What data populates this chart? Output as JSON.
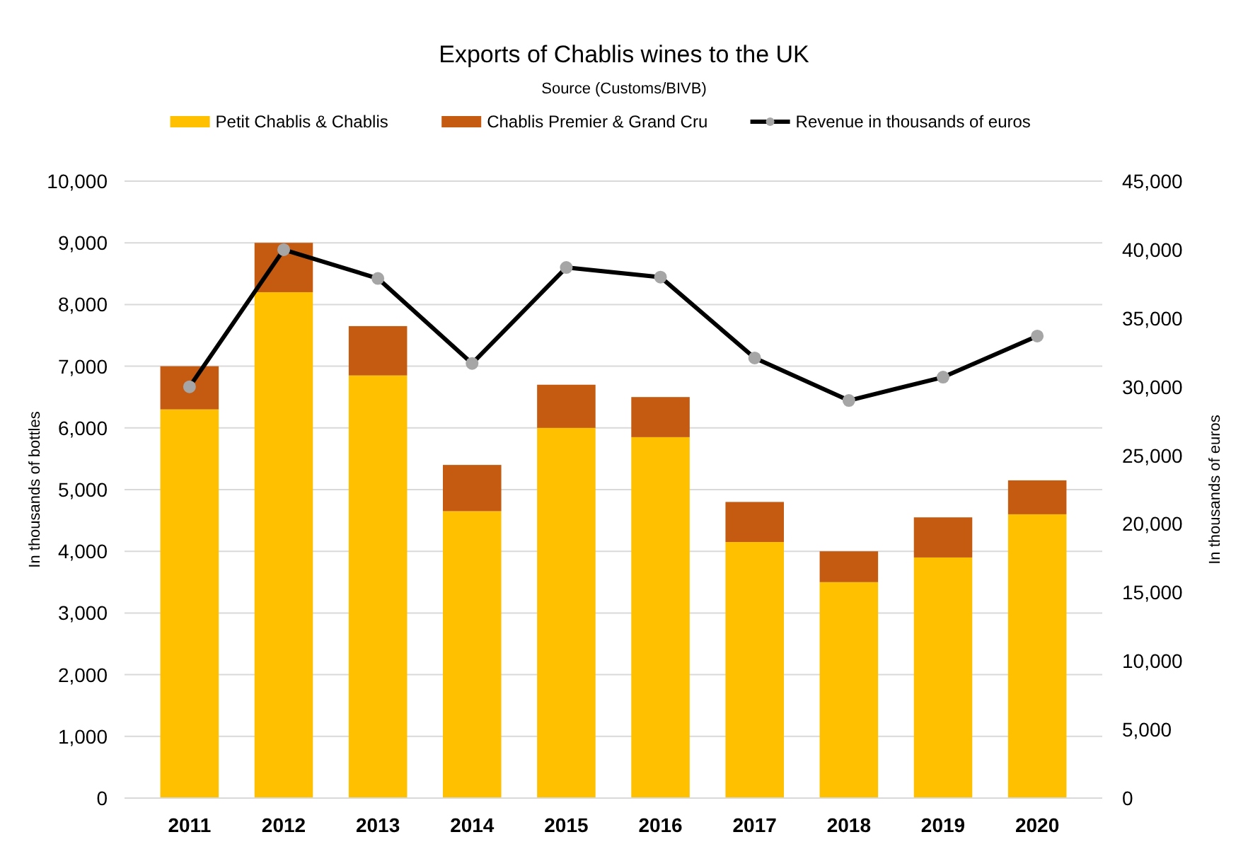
{
  "chart_data": {
    "type": "bar",
    "title": "Exports of Chablis wines to the UK",
    "subtitle": "Source (Customs/BIVB)",
    "ylabel": "In thousands of bottles",
    "y2label": "In thousands of euros",
    "categories": [
      "2011",
      "2012",
      "2013",
      "2014",
      "2015",
      "2016",
      "2017",
      "2018",
      "2019",
      "2020"
    ],
    "stacked": true,
    "grid": "y",
    "legend": "top",
    "marker": "circle",
    "ylim": [
      0,
      10000
    ],
    "yticks": [
      {
        "value": 0,
        "label": "0"
      },
      {
        "value": 1000,
        "label": "1,000"
      },
      {
        "value": 2000,
        "label": "2,000"
      },
      {
        "value": 3000,
        "label": "3,000"
      },
      {
        "value": 4000,
        "label": "4,000"
      },
      {
        "value": 5000,
        "label": "5,000"
      },
      {
        "value": 6000,
        "label": "6,000"
      },
      {
        "value": 7000,
        "label": "7,000"
      },
      {
        "value": 8000,
        "label": "8,000"
      },
      {
        "value": 9000,
        "label": "9,000"
      },
      {
        "value": 10000,
        "label": "10,000"
      }
    ],
    "y2lim": [
      0,
      45000
    ],
    "y2ticks": [
      {
        "value": 0,
        "label": "0"
      },
      {
        "value": 5000,
        "label": "5,000"
      },
      {
        "value": 10000,
        "label": "10,000"
      },
      {
        "value": 15000,
        "label": "15,000"
      },
      {
        "value": 20000,
        "label": "20,000"
      },
      {
        "value": 25000,
        "label": "25,000"
      },
      {
        "value": 30000,
        "label": "30,000"
      },
      {
        "value": 35000,
        "label": "35,000"
      },
      {
        "value": 40000,
        "label": "40,000"
      },
      {
        "value": 45000,
        "label": "45,000"
      }
    ],
    "series": [
      {
        "name": "Petit Chablis & Chablis",
        "color": "#ffc000",
        "values": [
          6300,
          8200,
          6850,
          4650,
          6000,
          5850,
          4150,
          3500,
          3900,
          4600
        ]
      },
      {
        "name": "Chablis Premier & Grand Cru",
        "color": "#c55a11",
        "values": [
          700,
          800,
          800,
          750,
          700,
          650,
          650,
          500,
          650,
          550
        ]
      },
      {
        "name": "Revenue in thousands of euros",
        "type": "line",
        "axis": "y2",
        "color": "#000000",
        "values": [
          30000,
          40000,
          37900,
          31700,
          38700,
          38000,
          32100,
          29000,
          30700,
          33700
        ]
      }
    ]
  }
}
